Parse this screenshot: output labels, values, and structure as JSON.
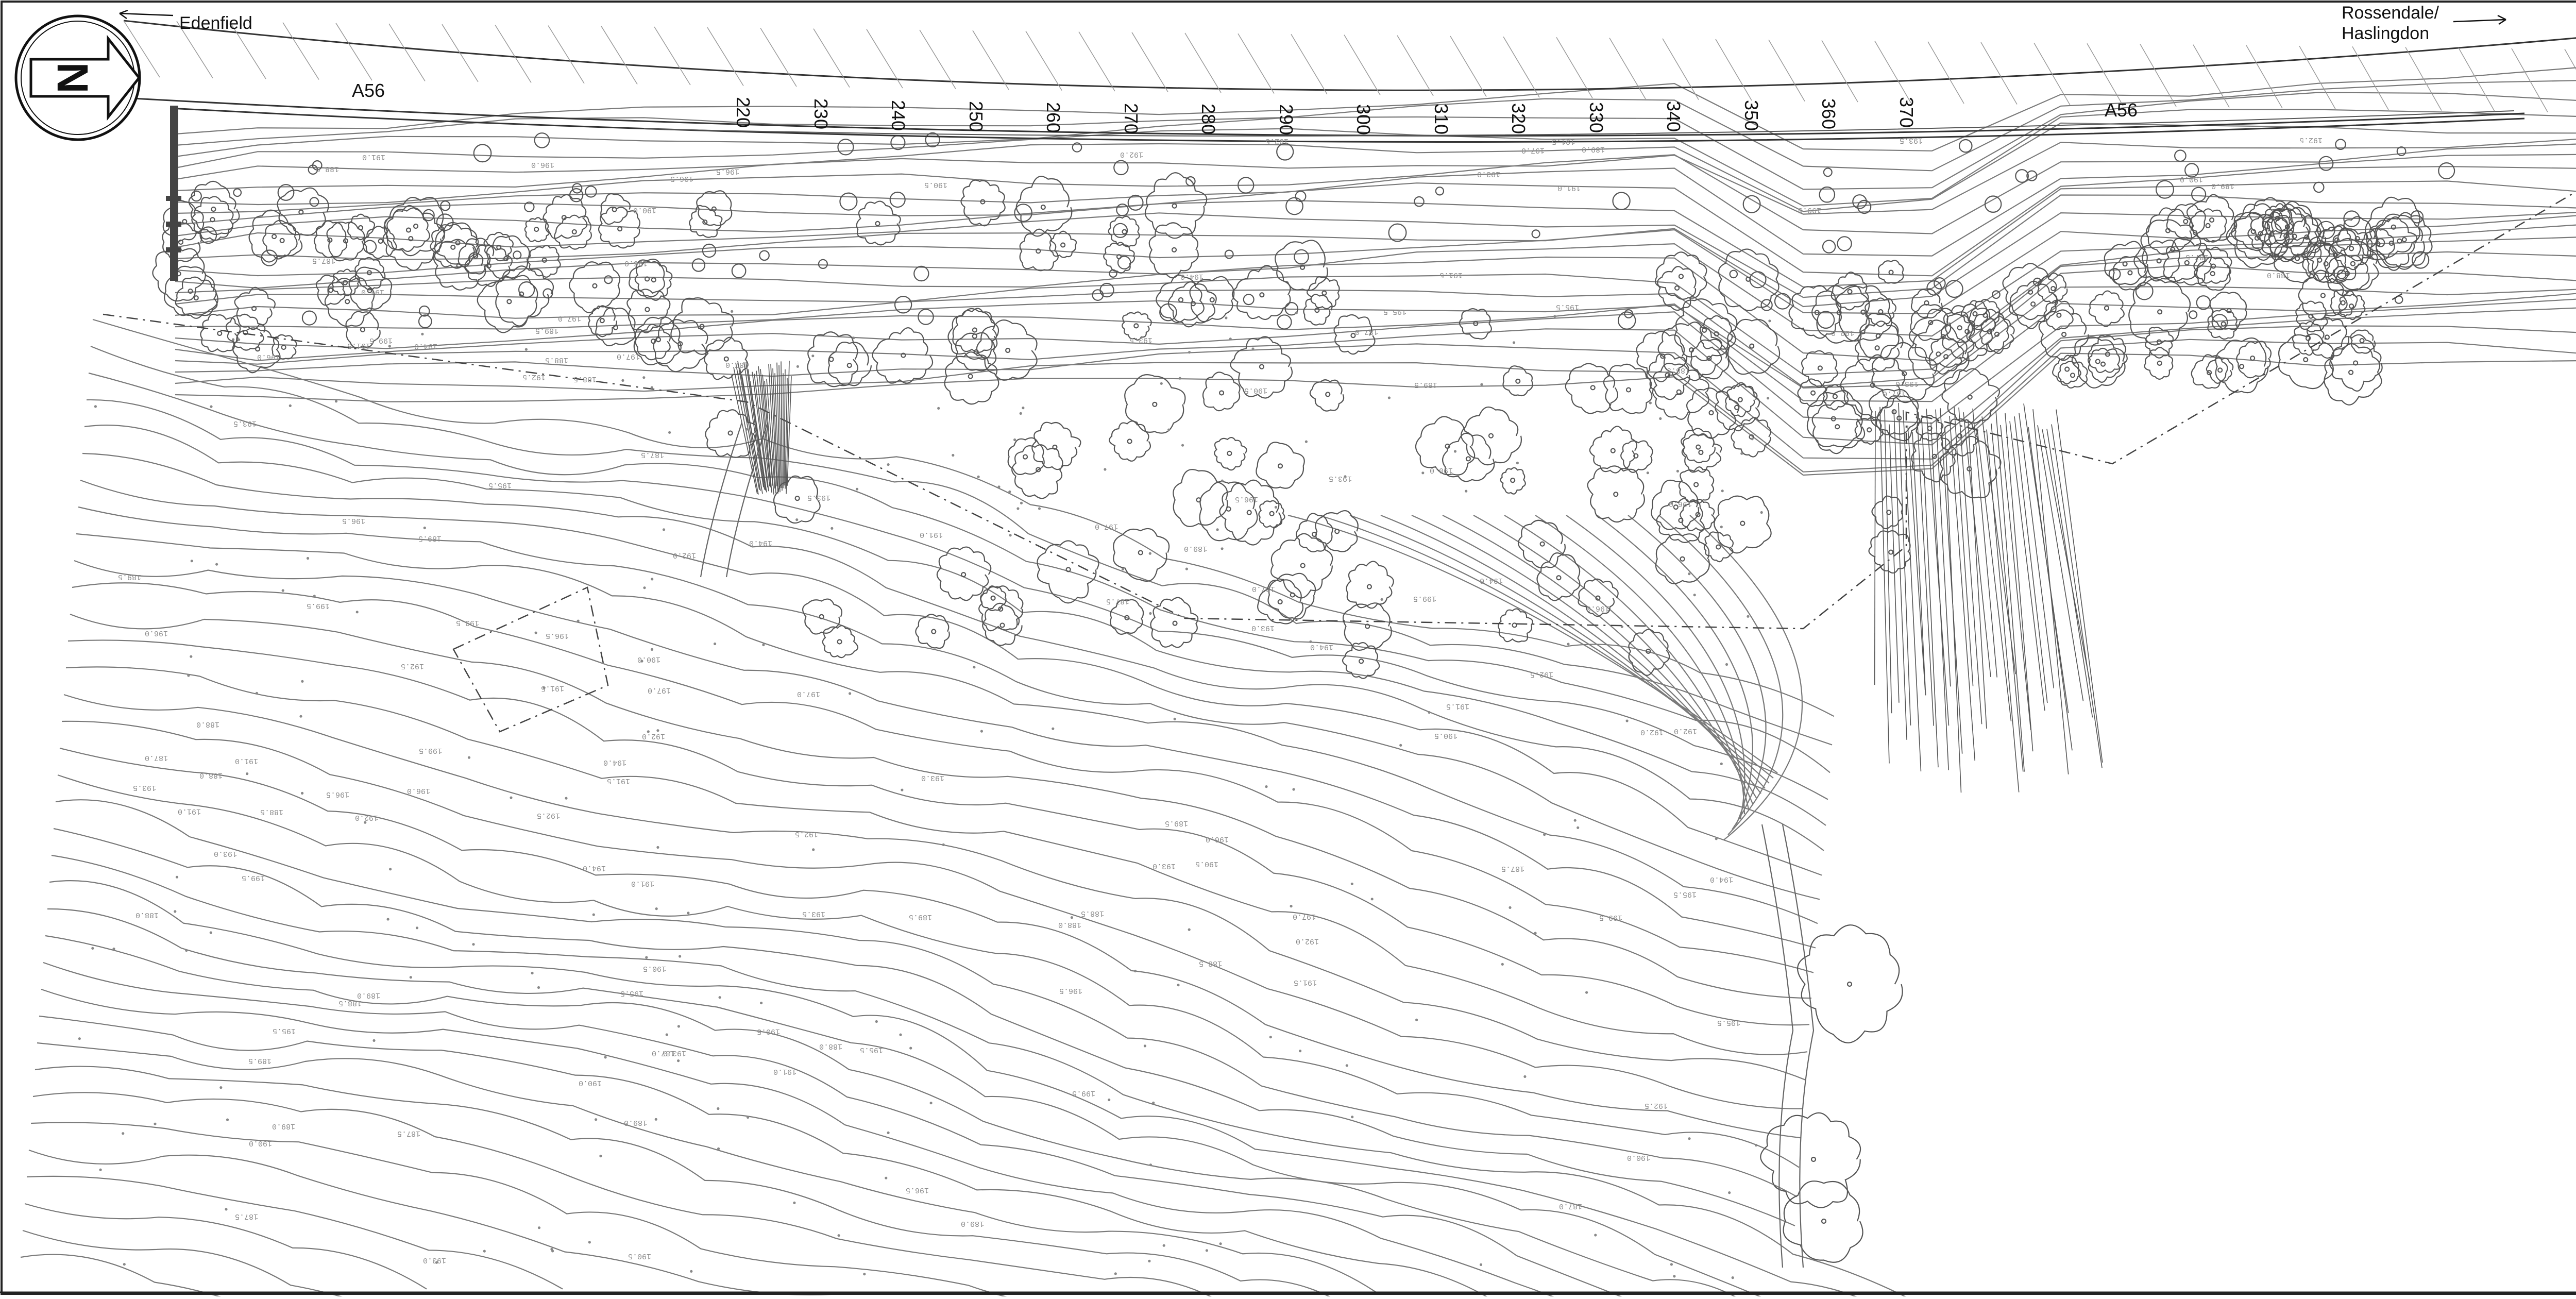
{
  "places": {
    "west": "Edenfield",
    "east_line1": "Rossendale/",
    "east_line2": "Haslingdon"
  },
  "road": {
    "west_label": "A56",
    "east_label": "A56"
  },
  "chainages": [
    "220",
    "230",
    "240",
    "250",
    "260",
    "270",
    "280",
    "290",
    "300",
    "310",
    "320",
    "330",
    "340",
    "350",
    "360",
    "370"
  ],
  "north_arrow": {
    "letter": "N"
  },
  "spot_levels": [
    "199.5",
    "197.0",
    "196.5",
    "196.0",
    "195.5",
    "194.0",
    "193.5",
    "193.0",
    "192.5",
    "192.0",
    "191.5",
    "191.0",
    "190.5",
    "190.0",
    "189.5",
    "189.0",
    "188.5",
    "188.0",
    "187.5",
    "187.0"
  ],
  "colors": {
    "line": "#4a4a4a",
    "contour": "#7a7a7a",
    "tree": "#555555",
    "text": "#111111",
    "frame": "#222222"
  }
}
